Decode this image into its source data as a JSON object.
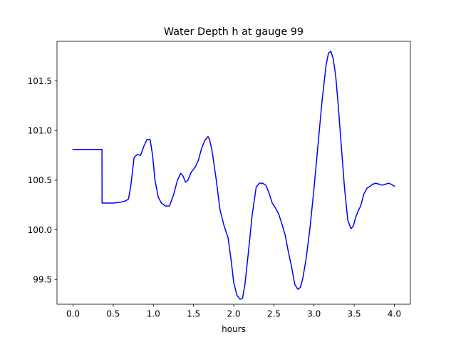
{
  "chart_data": {
    "type": "line",
    "title": "Water Depth h at gauge 99",
    "xlabel": "hours",
    "ylabel": "",
    "xlim": [
      -0.2,
      4.2
    ],
    "ylim": [
      99.25,
      101.9
    ],
    "xticks": [
      0.0,
      0.5,
      1.0,
      1.5,
      2.0,
      2.5,
      3.0,
      3.5,
      4.0
    ],
    "xtick_labels": [
      "0.0",
      "0.5",
      "1.0",
      "1.5",
      "2.0",
      "2.5",
      "3.0",
      "3.5",
      "4.0"
    ],
    "yticks": [
      99.5,
      100.0,
      100.5,
      101.0,
      101.5
    ],
    "ytick_labels": [
      "99.5",
      "100.0",
      "100.5",
      "101.0",
      "101.5"
    ],
    "grid": false,
    "series": [
      {
        "color": "#0000ff",
        "x": [
          0.0,
          0.1,
          0.2,
          0.3,
          0.36,
          0.361,
          0.4,
          0.5,
          0.6,
          0.65,
          0.69,
          0.72,
          0.76,
          0.8,
          0.84,
          0.88,
          0.92,
          0.96,
          0.99,
          1.02,
          1.06,
          1.1,
          1.15,
          1.2,
          1.25,
          1.3,
          1.34,
          1.37,
          1.4,
          1.43,
          1.47,
          1.52,
          1.56,
          1.6,
          1.64,
          1.68,
          1.7,
          1.73,
          1.78,
          1.83,
          1.88,
          1.93,
          1.97,
          2.0,
          2.04,
          2.08,
          2.11,
          2.14,
          2.18,
          2.23,
          2.28,
          2.32,
          2.36,
          2.4,
          2.44,
          2.48,
          2.52,
          2.56,
          2.6,
          2.64,
          2.68,
          2.72,
          2.76,
          2.8,
          2.83,
          2.86,
          2.9,
          2.95,
          3.0,
          3.05,
          3.1,
          3.15,
          3.18,
          3.21,
          3.24,
          3.27,
          3.3,
          3.34,
          3.38,
          3.42,
          3.46,
          3.49,
          3.52,
          3.55,
          3.58,
          3.62,
          3.66,
          3.7,
          3.73,
          3.77,
          3.81,
          3.85,
          3.89,
          3.93,
          3.96,
          4.0
        ],
        "y": [
          100.81,
          100.81,
          100.81,
          100.81,
          100.81,
          100.27,
          100.27,
          100.27,
          100.28,
          100.29,
          100.31,
          100.45,
          100.73,
          100.76,
          100.75,
          100.84,
          100.91,
          100.91,
          100.75,
          100.5,
          100.33,
          100.27,
          100.24,
          100.24,
          100.35,
          100.5,
          100.57,
          100.54,
          100.48,
          100.5,
          100.58,
          100.63,
          100.7,
          100.82,
          100.9,
          100.94,
          100.91,
          100.8,
          100.52,
          100.2,
          100.04,
          99.92,
          99.68,
          99.47,
          99.34,
          99.3,
          99.31,
          99.45,
          99.75,
          100.15,
          100.43,
          100.47,
          100.47,
          100.45,
          100.37,
          100.27,
          100.22,
          100.16,
          100.06,
          99.95,
          99.78,
          99.63,
          99.45,
          99.4,
          99.42,
          99.51,
          99.7,
          100.02,
          100.42,
          100.86,
          101.3,
          101.66,
          101.78,
          101.8,
          101.72,
          101.55,
          101.27,
          100.84,
          100.42,
          100.1,
          100.01,
          100.04,
          100.13,
          100.19,
          100.24,
          100.36,
          100.42,
          100.44,
          100.46,
          100.47,
          100.46,
          100.45,
          100.46,
          100.47,
          100.46,
          100.44
        ]
      }
    ]
  }
}
